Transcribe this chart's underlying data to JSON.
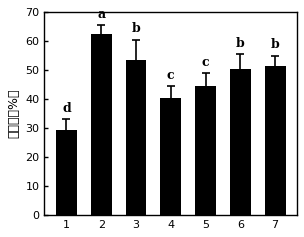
{
  "categories": [
    "1",
    "2",
    "3",
    "4",
    "5",
    "6",
    "7"
  ],
  "values": [
    29.5,
    62.5,
    53.5,
    40.5,
    44.5,
    50.5,
    51.5
  ],
  "errors": [
    3.5,
    3.0,
    7.0,
    4.0,
    4.5,
    5.0,
    3.5
  ],
  "letters": [
    "d",
    "a",
    "b",
    "c",
    "c",
    "b",
    "b"
  ],
  "bar_color": "#000000",
  "ylabel": "抑制率（%）",
  "ylim": [
    0,
    70
  ],
  "yticks": [
    0,
    10,
    20,
    30,
    40,
    50,
    60,
    70
  ],
  "background_color": "#ffffff",
  "title_fontsize": 9,
  "label_fontsize": 9,
  "tick_fontsize": 8,
  "letter_fontsize": 9
}
